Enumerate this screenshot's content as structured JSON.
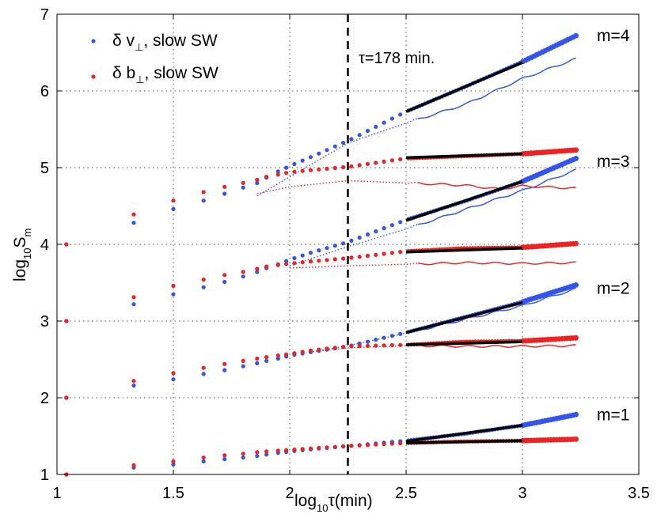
{
  "chart_data": {
    "type": "scatter",
    "title": "",
    "xlabel_main": "log",
    "xlabel_sub": "10",
    "xlabel_rest": "τ(min)",
    "ylabel_main": "log",
    "ylabel_sub": "10",
    "ylabel_rest": "S",
    "ylabel_sub2": "m",
    "xlim": [
      1,
      3.5
    ],
    "ylim": [
      1,
      7
    ],
    "xticks": [
      "1",
      "1.5",
      "2",
      "2.5",
      "3",
      "3.5"
    ],
    "yticks": [
      "1",
      "2",
      "3",
      "4",
      "5",
      "6",
      "7"
    ],
    "grid": true,
    "legend_position": "top-left",
    "legend": [
      {
        "symbol": "δ v",
        "sub": "⊥",
        "text": ", slow SW",
        "color": "#3355ee"
      },
      {
        "symbol": "δ b",
        "sub": "⊥",
        "text": ", slow SW",
        "color": "#ee2222"
      }
    ],
    "annotations": {
      "tau": "τ=178 min.",
      "tau_line_x": 2.25,
      "m_labels": [
        {
          "text": "m=4",
          "y": 6.72
        },
        {
          "text": "m=3",
          "y": 5.08
        },
        {
          "text": "m=2",
          "y": 3.43
        },
        {
          "text": "m=1",
          "y": 1.78
        }
      ]
    },
    "colors": {
      "v": "#3355ee",
      "b": "#ee2222",
      "fit": "#000000",
      "vline": "#000000"
    },
    "series": [
      {
        "name": "δv m=1",
        "color": "#3355ee",
        "points": [
          [
            1.04,
            1.0
          ],
          [
            1.33,
            1.09
          ],
          [
            1.5,
            1.13
          ],
          [
            1.63,
            1.17
          ],
          [
            1.72,
            1.2
          ],
          [
            1.8,
            1.22
          ],
          [
            1.86,
            1.24
          ],
          [
            1.9,
            1.26
          ],
          [
            1.95,
            1.28
          ],
          [
            2.0,
            1.3
          ],
          [
            2.1,
            1.33
          ],
          [
            2.25,
            1.37
          ],
          [
            2.5,
            1.44
          ],
          [
            2.75,
            1.53
          ],
          [
            3.0,
            1.64
          ],
          [
            3.23,
            1.78
          ]
        ]
      },
      {
        "name": "δb m=1",
        "color": "#ee2222",
        "points": [
          [
            1.04,
            1.0
          ],
          [
            1.33,
            1.12
          ],
          [
            1.5,
            1.17
          ],
          [
            1.63,
            1.22
          ],
          [
            1.72,
            1.25
          ],
          [
            1.8,
            1.27
          ],
          [
            1.86,
            1.29
          ],
          [
            1.9,
            1.3
          ],
          [
            1.95,
            1.31
          ],
          [
            2.0,
            1.32
          ],
          [
            2.1,
            1.34
          ],
          [
            2.25,
            1.37
          ],
          [
            2.5,
            1.41
          ],
          [
            2.75,
            1.43
          ],
          [
            3.0,
            1.44
          ],
          [
            3.23,
            1.46
          ]
        ]
      },
      {
        "name": "δv m=2",
        "color": "#3355ee",
        "points": [
          [
            1.04,
            2.0
          ],
          [
            1.33,
            2.16
          ],
          [
            1.5,
            2.24
          ],
          [
            1.63,
            2.31
          ],
          [
            1.72,
            2.36
          ],
          [
            1.8,
            2.41
          ],
          [
            1.86,
            2.45
          ],
          [
            1.9,
            2.48
          ],
          [
            1.95,
            2.51
          ],
          [
            2.0,
            2.55
          ],
          [
            2.1,
            2.6
          ],
          [
            2.25,
            2.67
          ],
          [
            2.5,
            2.85
          ],
          [
            2.75,
            3.05
          ],
          [
            3.0,
            3.25
          ],
          [
            3.23,
            3.47
          ]
        ]
      },
      {
        "name": "δb m=2",
        "color": "#ee2222",
        "points": [
          [
            1.04,
            2.0
          ],
          [
            1.33,
            2.22
          ],
          [
            1.5,
            2.32
          ],
          [
            1.63,
            2.39
          ],
          [
            1.72,
            2.44
          ],
          [
            1.8,
            2.48
          ],
          [
            1.86,
            2.51
          ],
          [
            1.9,
            2.53
          ],
          [
            1.95,
            2.55
          ],
          [
            2.0,
            2.57
          ],
          [
            2.1,
            2.62
          ],
          [
            2.25,
            2.67
          ],
          [
            2.5,
            2.69
          ],
          [
            2.75,
            2.73
          ],
          [
            3.0,
            2.74
          ],
          [
            3.23,
            2.78
          ]
        ]
      },
      {
        "name": "δv m=3",
        "color": "#3355ee",
        "points": [
          [
            1.04,
            3.0
          ],
          [
            1.33,
            3.22
          ],
          [
            1.5,
            3.35
          ],
          [
            1.63,
            3.44
          ],
          [
            1.72,
            3.51
          ],
          [
            1.8,
            3.58
          ],
          [
            1.86,
            3.64
          ],
          [
            1.9,
            3.69
          ],
          [
            1.95,
            3.74
          ],
          [
            2.0,
            3.8
          ],
          [
            2.1,
            3.9
          ],
          [
            2.25,
            4.03
          ],
          [
            2.5,
            4.32
          ],
          [
            2.75,
            4.56
          ],
          [
            3.0,
            4.82
          ],
          [
            3.23,
            5.12
          ]
        ]
      },
      {
        "name": "δb m=3",
        "color": "#ee2222",
        "points": [
          [
            1.04,
            3.0
          ],
          [
            1.33,
            3.31
          ],
          [
            1.5,
            3.46
          ],
          [
            1.63,
            3.54
          ],
          [
            1.72,
            3.6
          ],
          [
            1.8,
            3.64
          ],
          [
            1.86,
            3.68
          ],
          [
            1.9,
            3.71
          ],
          [
            1.95,
            3.73
          ],
          [
            2.0,
            3.75
          ],
          [
            2.1,
            3.78
          ],
          [
            2.25,
            3.82
          ],
          [
            2.5,
            3.91
          ],
          [
            2.75,
            3.95
          ],
          [
            3.0,
            3.96
          ],
          [
            3.23,
            4.01
          ]
        ]
      },
      {
        "name": "δv m=4",
        "color": "#3355ee",
        "points": [
          [
            1.04,
            4.0
          ],
          [
            1.33,
            4.28
          ],
          [
            1.5,
            4.46
          ],
          [
            1.63,
            4.57
          ],
          [
            1.72,
            4.66
          ],
          [
            1.8,
            4.74
          ],
          [
            1.86,
            4.8
          ],
          [
            1.9,
            4.87
          ],
          [
            1.95,
            4.95
          ],
          [
            2.0,
            5.02
          ],
          [
            2.1,
            5.15
          ],
          [
            2.25,
            5.35
          ],
          [
            2.5,
            5.73
          ],
          [
            2.75,
            6.05
          ],
          [
            3.0,
            6.38
          ],
          [
            3.23,
            6.72
          ]
        ]
      },
      {
        "name": "δb m=4",
        "color": "#ee2222",
        "points": [
          [
            1.04,
            4.0
          ],
          [
            1.33,
            4.39
          ],
          [
            1.5,
            4.57
          ],
          [
            1.63,
            4.68
          ],
          [
            1.72,
            4.75
          ],
          [
            1.8,
            4.8
          ],
          [
            1.86,
            4.84
          ],
          [
            1.9,
            4.88
          ],
          [
            1.95,
            4.91
          ],
          [
            2.0,
            4.94
          ],
          [
            2.1,
            4.97
          ],
          [
            2.25,
            5.01
          ],
          [
            2.5,
            5.12
          ],
          [
            2.75,
            5.15
          ],
          [
            3.0,
            5.18
          ],
          [
            3.23,
            5.23
          ]
        ]
      }
    ],
    "thin_lines": [
      {
        "name": "δv m=2 raw",
        "color": "#3355ee",
        "points": [
          [
            2.1,
            2.6
          ],
          [
            2.25,
            2.68
          ],
          [
            2.5,
            2.84
          ],
          [
            2.75,
            3.02
          ],
          [
            3.0,
            3.2
          ],
          [
            3.23,
            3.42
          ]
        ]
      },
      {
        "name": "δb m=2 raw",
        "color": "#ee2222",
        "points": [
          [
            2.1,
            2.6
          ],
          [
            2.25,
            2.65
          ],
          [
            2.5,
            2.68
          ],
          [
            2.75,
            2.67
          ],
          [
            3.0,
            2.67
          ],
          [
            3.23,
            2.68
          ]
        ]
      },
      {
        "name": "δv m=3 raw",
        "color": "#3355ee",
        "points": [
          [
            2.0,
            3.72
          ],
          [
            2.25,
            3.97
          ],
          [
            2.5,
            4.2
          ],
          [
            2.75,
            4.45
          ],
          [
            3.0,
            4.7
          ],
          [
            3.23,
            4.97
          ]
        ]
      },
      {
        "name": "δb m=3 raw",
        "color": "#ee2222",
        "points": [
          [
            2.0,
            3.69
          ],
          [
            2.25,
            3.72
          ],
          [
            2.5,
            3.74
          ],
          [
            2.75,
            3.76
          ],
          [
            3.0,
            3.75
          ],
          [
            3.23,
            3.76
          ]
        ]
      },
      {
        "name": "δv m=4 raw",
        "color": "#3355ee",
        "points": [
          [
            1.86,
            4.63
          ],
          [
            2.0,
            4.88
          ],
          [
            2.25,
            5.32
          ],
          [
            2.5,
            5.58
          ],
          [
            2.75,
            5.82
          ],
          [
            3.0,
            6.16
          ],
          [
            3.23,
            6.42
          ]
        ]
      },
      {
        "name": "δb m=4 raw",
        "color": "#ee2222",
        "points": [
          [
            1.86,
            4.66
          ],
          [
            2.0,
            4.75
          ],
          [
            2.25,
            4.83
          ],
          [
            2.5,
            4.8
          ],
          [
            2.75,
            4.77
          ],
          [
            2.9,
            4.72
          ],
          [
            3.0,
            4.76
          ],
          [
            3.23,
            4.73
          ]
        ]
      }
    ],
    "fit_lines": [
      {
        "name": "fit v m=1",
        "points": [
          [
            2.5,
            1.43
          ],
          [
            3.0,
            1.64
          ]
        ]
      },
      {
        "name": "fit b m=1",
        "points": [
          [
            2.5,
            1.41
          ],
          [
            3.0,
            1.44
          ]
        ]
      },
      {
        "name": "fit v m=2",
        "points": [
          [
            2.5,
            2.85
          ],
          [
            3.0,
            3.24
          ]
        ]
      },
      {
        "name": "fit b m=2",
        "points": [
          [
            2.5,
            2.69
          ],
          [
            3.0,
            2.73
          ]
        ]
      },
      {
        "name": "fit v m=3",
        "points": [
          [
            2.5,
            4.31
          ],
          [
            3.0,
            4.82
          ]
        ]
      },
      {
        "name": "fit b m=3",
        "points": [
          [
            2.5,
            3.9
          ],
          [
            3.0,
            3.95
          ]
        ]
      },
      {
        "name": "fit v m=4",
        "points": [
          [
            2.5,
            5.73
          ],
          [
            3.0,
            6.37
          ]
        ]
      },
      {
        "name": "fit b m=4",
        "points": [
          [
            2.5,
            5.13
          ],
          [
            3.0,
            5.18
          ]
        ]
      }
    ]
  }
}
